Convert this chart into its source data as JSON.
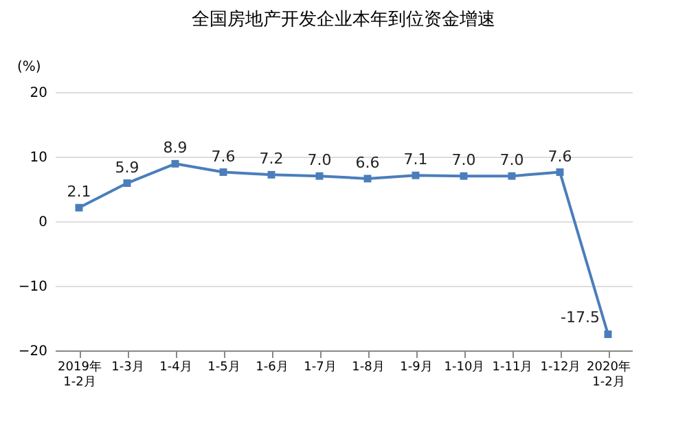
{
  "chart_data": {
    "type": "line",
    "title": "全国房地产开发企业本年到位资金增速",
    "ylabel": "(%)",
    "categories": [
      "2019年\n1-2月",
      "1-3月",
      "1-4月",
      "1-5月",
      "1-6月",
      "1-7月",
      "1-8月",
      "1-9月",
      "1-10月",
      "1-11月",
      "1-12月",
      "2020年\n1-2月"
    ],
    "series": [
      {
        "color": "#4a7ebb",
        "values": [
          2.1,
          5.9,
          8.9,
          7.6,
          7.2,
          7.0,
          6.6,
          7.1,
          7.0,
          7.0,
          7.6,
          -17.5
        ],
        "value_labels": [
          "2.1",
          "5.9",
          "8.9",
          "7.6",
          "7.2",
          "7.0",
          "6.6",
          "7.1",
          "7.0",
          "7.0",
          "7.6",
          "-17.5"
        ]
      }
    ],
    "ylim": [
      -20,
      20
    ],
    "yticks": [
      -20,
      -10,
      0,
      10,
      20
    ],
    "grid": "y",
    "marker": "square",
    "line_style": "solid"
  }
}
